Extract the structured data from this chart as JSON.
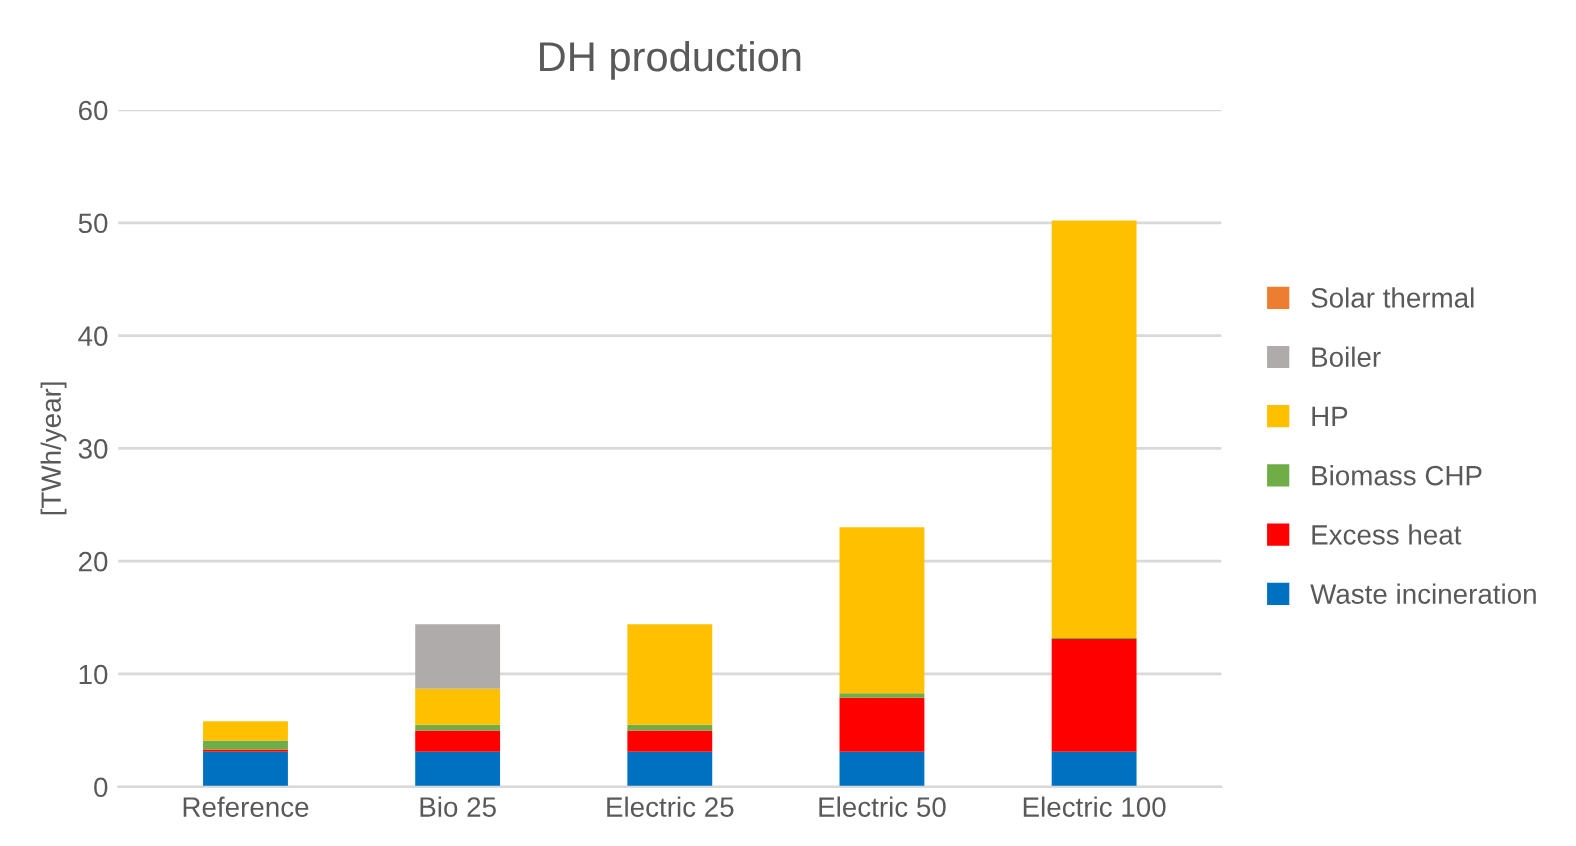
{
  "chart_data": {
    "type": "bar",
    "stacked": true,
    "title": "DH production",
    "ylabel": "[TWh/year]",
    "categories": [
      "Reference",
      "Bio 25",
      "Electric 25",
      "Electric 50",
      "Electric 100"
    ],
    "series": [
      {
        "name": "Waste incineration",
        "color": "#0070c0",
        "values": [
          3.1,
          3.1,
          3.1,
          3.1,
          3.1
        ]
      },
      {
        "name": "Excess heat",
        "color": "#ff0000",
        "values": [
          0.2,
          1.9,
          1.9,
          4.8,
          10.0
        ]
      },
      {
        "name": "Biomass CHP",
        "color": "#70ad47",
        "values": [
          0.8,
          0.5,
          0.5,
          0.4,
          0.1
        ]
      },
      {
        "name": "HP",
        "color": "#ffc000",
        "values": [
          1.7,
          3.2,
          8.9,
          14.7,
          37.0
        ]
      },
      {
        "name": "Boiler",
        "color": "#afabab",
        "values": [
          0,
          5.7,
          0,
          0,
          0
        ]
      },
      {
        "name": "Solar thermal",
        "color": "#ed7d31",
        "values": [
          0,
          0,
          0,
          0,
          0
        ]
      }
    ],
    "ylim": [
      0,
      60
    ],
    "yticks": [
      0,
      10,
      20,
      30,
      40,
      50,
      60
    ],
    "grid": "y",
    "legend": "right"
  }
}
